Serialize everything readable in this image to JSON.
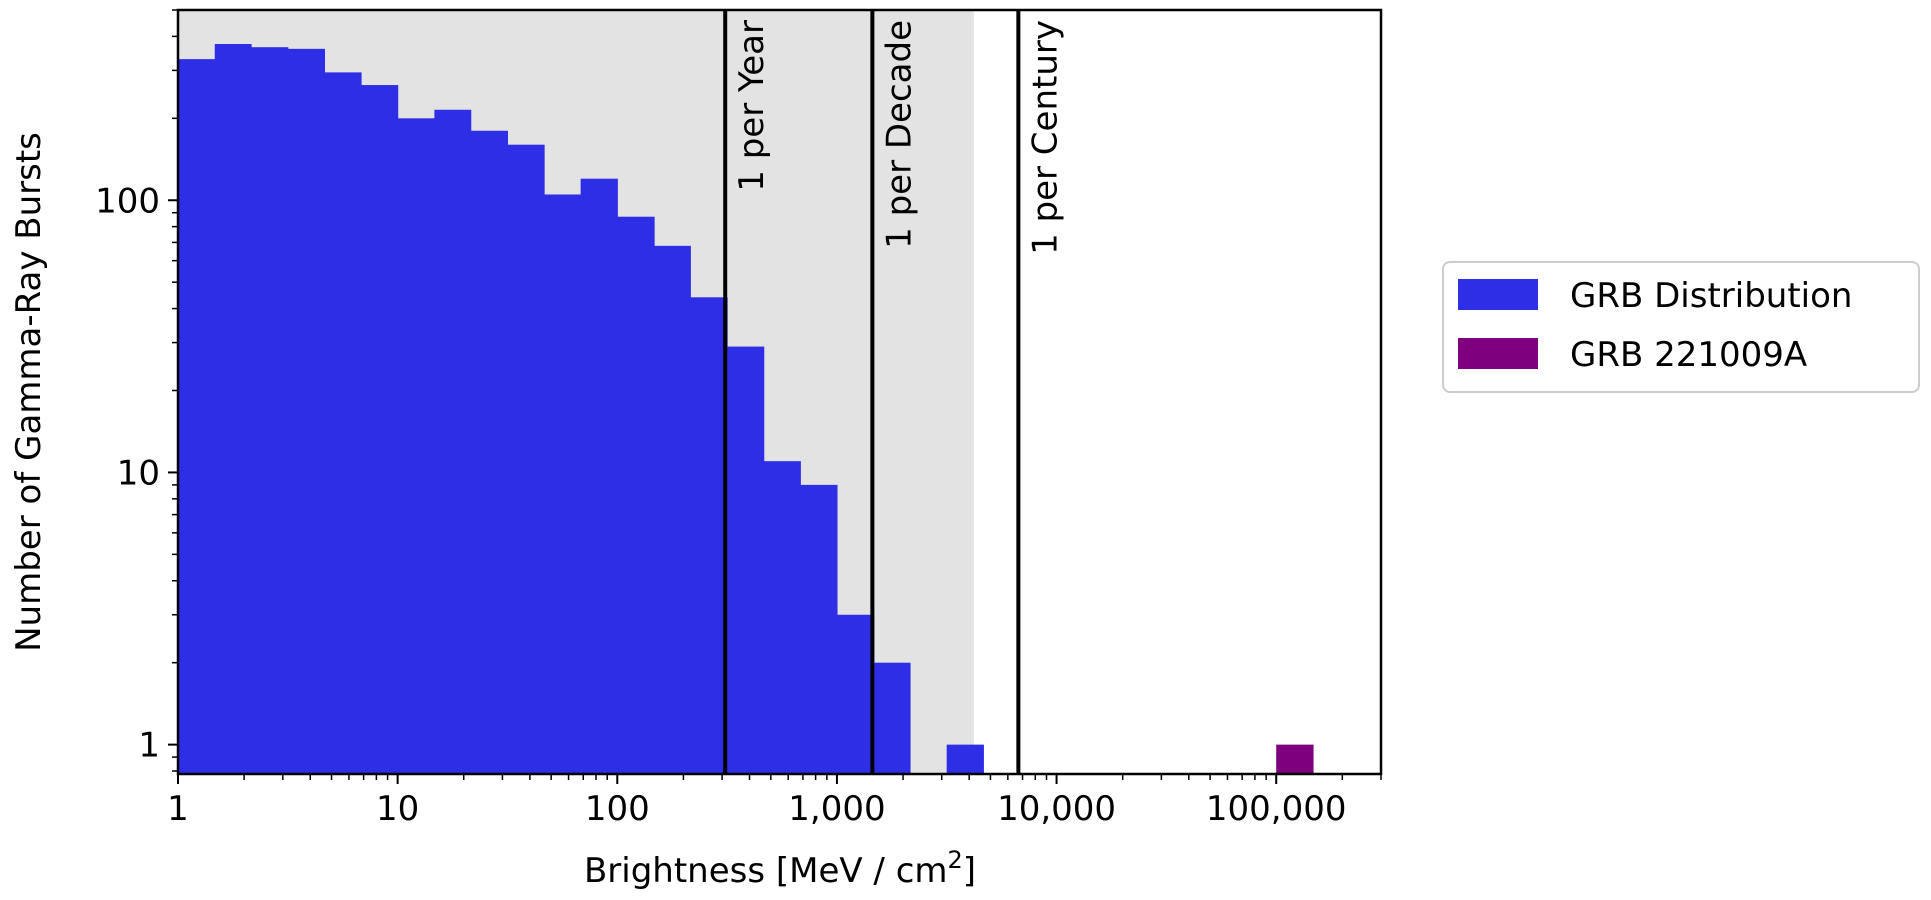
{
  "chart_data": {
    "type": "bar",
    "title": "",
    "xlabel": "Brightness [MeV / cm",
    "xlabel_superscript": "2",
    "xlabel_close": "]",
    "ylabel": "Number of Gamma-Ray Bursts",
    "x_scale": "log",
    "y_scale": "log",
    "xlim": [
      1,
      300000
    ],
    "ylim": [
      0.78,
      500
    ],
    "x_ticks": [
      {
        "value": 1,
        "label": "1"
      },
      {
        "value": 10,
        "label": "10"
      },
      {
        "value": 100,
        "label": "100"
      },
      {
        "value": 1000,
        "label": "1,000"
      },
      {
        "value": 10000,
        "label": "10,000"
      },
      {
        "value": 100000,
        "label": "100,000"
      }
    ],
    "y_ticks": [
      {
        "value": 1,
        "label": "1"
      },
      {
        "value": 10,
        "label": "10"
      },
      {
        "value": 100,
        "label": "100"
      }
    ],
    "shaded_region": {
      "x_from": 1,
      "x_to": 4200,
      "color": "#e3e3e3"
    },
    "series": [
      {
        "name": "GRB Distribution",
        "color": "#2e2ee6",
        "bins": [
          {
            "x0": 1.0,
            "x1": 1.47,
            "count": 330
          },
          {
            "x0": 1.47,
            "x1": 2.15,
            "count": 375
          },
          {
            "x0": 2.15,
            "x1": 3.16,
            "count": 365
          },
          {
            "x0": 3.16,
            "x1": 4.64,
            "count": 360
          },
          {
            "x0": 4.64,
            "x1": 6.81,
            "count": 295
          },
          {
            "x0": 6.81,
            "x1": 10.0,
            "count": 265
          },
          {
            "x0": 10.0,
            "x1": 14.7,
            "count": 200
          },
          {
            "x0": 14.7,
            "x1": 21.5,
            "count": 215
          },
          {
            "x0": 21.5,
            "x1": 31.6,
            "count": 180
          },
          {
            "x0": 31.6,
            "x1": 46.4,
            "count": 160
          },
          {
            "x0": 46.4,
            "x1": 68.1,
            "count": 105
          },
          {
            "x0": 68.1,
            "x1": 100,
            "count": 120
          },
          {
            "x0": 100,
            "x1": 147,
            "count": 87
          },
          {
            "x0": 147,
            "x1": 215,
            "count": 68
          },
          {
            "x0": 215,
            "x1": 316,
            "count": 44
          },
          {
            "x0": 316,
            "x1": 464,
            "count": 29
          },
          {
            "x0": 464,
            "x1": 681,
            "count": 11
          },
          {
            "x0": 681,
            "x1": 1000,
            "count": 9
          },
          {
            "x0": 1000,
            "x1": 1470,
            "count": 3
          },
          {
            "x0": 1470,
            "x1": 2150,
            "count": 2
          },
          {
            "x0": 2150,
            "x1": 3160,
            "count": 0
          },
          {
            "x0": 3160,
            "x1": 4640,
            "count": 1
          }
        ]
      },
      {
        "name": "GRB 221009A",
        "color": "#7f007f",
        "bins": [
          {
            "x0": 100000,
            "x1": 147000,
            "count": 1
          }
        ]
      }
    ],
    "reference_lines": [
      {
        "x": 310,
        "label": "1 per Year"
      },
      {
        "x": 1450,
        "label": "1 per Decade"
      },
      {
        "x": 6700,
        "label": "1 per Century"
      }
    ],
    "legend": {
      "placement": "right",
      "entries": [
        {
          "label": "GRB Distribution",
          "color": "#2e2ee6"
        },
        {
          "label": "GRB 221009A",
          "color": "#7f007f"
        }
      ]
    },
    "grid": false
  }
}
